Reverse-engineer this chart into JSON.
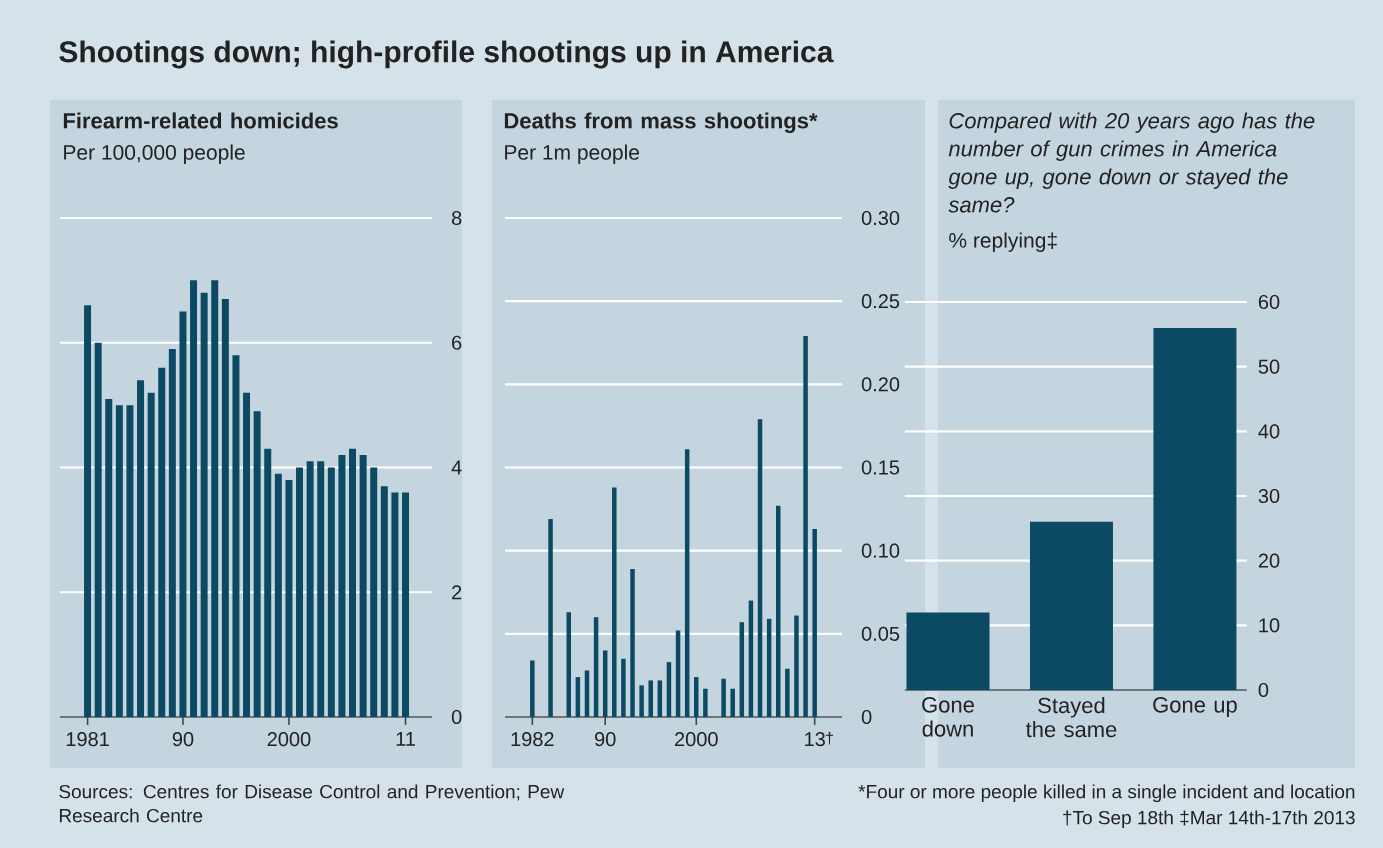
{
  "chart_data": [
    {
      "type": "bar",
      "title": "Firearm-related homicides",
      "subtitle": "Per 100,000 people",
      "annotations": [
        "Shootings down; high-profile shootings up in America",
        "Sources: Centres for Disease Control and Prevention; Pew Research Centre"
      ],
      "x": [
        1981,
        1982,
        1983,
        1984,
        1985,
        1986,
        1987,
        1988,
        1989,
        1990,
        1991,
        1992,
        1993,
        1994,
        1995,
        1996,
        1997,
        1998,
        1999,
        2000,
        2001,
        2002,
        2003,
        2004,
        2005,
        2006,
        2007,
        2008,
        2009,
        2010,
        2011
      ],
      "values": [
        6.6,
        6.0,
        5.1,
        5.0,
        5.0,
        5.4,
        5.2,
        5.6,
        5.9,
        6.5,
        7.0,
        6.8,
        7.0,
        6.7,
        5.8,
        5.2,
        4.9,
        4.3,
        3.9,
        3.8,
        4.0,
        4.1,
        4.1,
        4.0,
        4.2,
        4.3,
        4.2,
        4.0,
        3.7,
        3.6,
        3.6
      ],
      "color": "#0b4a62",
      "xlim": [
        1978.4,
        2013.5
      ],
      "xticks": [
        1981,
        {
          "value": 1990,
          "label": "90"
        },
        2000,
        {
          "value": 2011,
          "label": "11"
        }
      ],
      "ylim": [
        0,
        8
      ],
      "yticks": [
        0,
        2,
        4,
        6,
        8
      ],
      "grid": "y"
    },
    {
      "type": "bar",
      "title": "Deaths from mass shootings*",
      "subtitle": "Per 1m people",
      "x": [
        1982,
        1983,
        1984,
        1985,
        1986,
        1987,
        1988,
        1989,
        1990,
        1991,
        1992,
        1993,
        1994,
        1995,
        1996,
        1997,
        1998,
        1999,
        2000,
        2001,
        2002,
        2003,
        2004,
        2005,
        2006,
        2007,
        2008,
        2009,
        2010,
        2011,
        2012,
        2013
      ],
      "values": [
        0.034,
        0,
        0.119,
        0,
        0.063,
        0.024,
        0.028,
        0.06,
        0.04,
        0.138,
        0.035,
        0.089,
        0.019,
        0.022,
        0.022,
        0.033,
        0.052,
        0.161,
        0.024,
        0.017,
        0,
        0.023,
        0.017,
        0.057,
        0.07,
        0.179,
        0.059,
        0.127,
        0.029,
        0.061,
        0.229,
        0.113
      ],
      "annotations": [
        {
          "text": "†",
          "x": 2013,
          "y": 0
        }
      ],
      "color": "#0b4a62",
      "xlim": [
        1979.0,
        2016.0
      ],
      "xticks": [
        1982,
        {
          "value": 1990,
          "label": "90"
        },
        2000,
        {
          "value": 2013,
          "label": "13"
        }
      ],
      "ylim": [
        0,
        0.3
      ],
      "yticks": [
        0,
        0.05,
        {
          "value": 0.1,
          "label": "0.10"
        },
        0.15,
        {
          "value": 0.2,
          "label": "0.20"
        },
        0.25,
        {
          "value": 0.3,
          "label": "0.30"
        }
      ],
      "grid": "y"
    },
    {
      "type": "bar",
      "title": "Compared with 20 years ago has the number of gun crimes in America gone up, gone down or stayed the same?",
      "subtitle": "% replying‡",
      "annotations": [
        "*Four or more people killed in a single incident and location",
        "†To Sep 18th   ‡Mar 14th-17th 2013"
      ],
      "categories": [
        "Gone down",
        "Stayed the same",
        "Gone up"
      ],
      "values": [
        12,
        26,
        56
      ],
      "color": "#0b4a62",
      "ylim": [
        0,
        60
      ],
      "yticks": [
        0,
        10,
        20,
        30,
        40,
        50,
        60
      ],
      "grid": "y"
    }
  ]
}
